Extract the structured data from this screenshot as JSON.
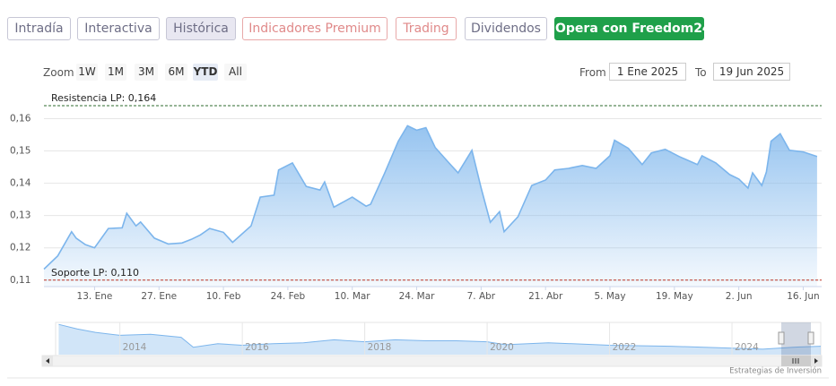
{
  "tabs": [
    "Intradía",
    "Interactiva",
    "Histórica",
    "Indicadores Premium",
    "Trading",
    "Dividendos",
    "Opera con Freedom24"
  ],
  "zoom": {
    "label": "Zoom",
    "buttons": [
      "1W",
      "1M",
      "3M",
      "6M",
      "YTD",
      "All"
    ]
  },
  "range": {
    "from_label": "From",
    "from": "1 Ene 2025",
    "to_label": "To",
    "to": "19 Jun 2025"
  },
  "chart_data": {
    "type": "area",
    "color": "#7cb5ec",
    "grid": true,
    "x": [
      "2025-01-02",
      "2025-01-05",
      "2025-01-08",
      "2025-01-09",
      "2025-01-11",
      "2025-01-13",
      "2025-01-16",
      "2025-01-19",
      "2025-01-20",
      "2025-01-22",
      "2025-01-23",
      "2025-01-26",
      "2025-01-29",
      "2025-02-01",
      "2025-02-03",
      "2025-02-05",
      "2025-02-07",
      "2025-02-10",
      "2025-02-12",
      "2025-02-16",
      "2025-02-18",
      "2025-02-21",
      "2025-02-22",
      "2025-02-25",
      "2025-02-28",
      "2025-03-03",
      "2025-03-04",
      "2025-03-06",
      "2025-03-10",
      "2025-03-13",
      "2025-03-14",
      "2025-03-17",
      "2025-03-20",
      "2025-03-22",
      "2025-03-24",
      "2025-03-26",
      "2025-03-28",
      "2025-03-31",
      "2025-04-02",
      "2025-04-05",
      "2025-04-07",
      "2025-04-09",
      "2025-04-11",
      "2025-04-12",
      "2025-04-15",
      "2025-04-18",
      "2025-04-21",
      "2025-04-23",
      "2025-04-26",
      "2025-04-29",
      "2025-05-02",
      "2025-05-05",
      "2025-05-06",
      "2025-05-09",
      "2025-05-12",
      "2025-05-14",
      "2025-05-17",
      "2025-05-20",
      "2025-05-24",
      "2025-05-25",
      "2025-05-28",
      "2025-05-31",
      "2025-06-02",
      "2025-06-04",
      "2025-06-05",
      "2025-06-07",
      "2025-06-08",
      "2025-06-09",
      "2025-06-11",
      "2025-06-13",
      "2025-06-16",
      "2025-06-19"
    ],
    "values": [
      0.1134,
      0.1175,
      0.125,
      0.123,
      0.121,
      0.12,
      0.126,
      0.1262,
      0.1307,
      0.1268,
      0.128,
      0.123,
      0.1212,
      0.1215,
      0.1226,
      0.124,
      0.126,
      0.1248,
      0.1217,
      0.1268,
      0.1357,
      0.1363,
      0.1441,
      0.1463,
      0.139,
      0.1379,
      0.1404,
      0.1326,
      0.1357,
      0.1329,
      0.1335,
      0.143,
      0.153,
      0.1578,
      0.1564,
      0.1572,
      0.1511,
      0.1463,
      0.1432,
      0.1502,
      0.1385,
      0.1279,
      0.1312,
      0.125,
      0.1296,
      0.1393,
      0.141,
      0.1441,
      0.1446,
      0.1455,
      0.1446,
      0.1485,
      0.1533,
      0.1508,
      0.1458,
      0.1494,
      0.1505,
      0.1483,
      0.1458,
      0.1485,
      0.1463,
      0.1427,
      0.1413,
      0.1385,
      0.1432,
      0.1393,
      0.1435,
      0.153,
      0.1553,
      0.1502,
      0.1497,
      0.1483
    ],
    "xlim": [
      "2025-01-02",
      "2025-06-20"
    ],
    "xticks": [
      {
        "value": "2025-01-13",
        "label": "13. Ene"
      },
      {
        "value": "2025-01-27",
        "label": "27. Ene"
      },
      {
        "value": "2025-02-10",
        "label": "10. Feb"
      },
      {
        "value": "2025-02-24",
        "label": "24. Feb"
      },
      {
        "value": "2025-03-10",
        "label": "10. Mar"
      },
      {
        "value": "2025-03-24",
        "label": "24. Mar"
      },
      {
        "value": "2025-04-07",
        "label": "7. Abr"
      },
      {
        "value": "2025-04-21",
        "label": "21. Abr"
      },
      {
        "value": "2025-05-05",
        "label": "5. May"
      },
      {
        "value": "2025-05-19",
        "label": "19. May"
      },
      {
        "value": "2025-06-02",
        "label": "2. Jun"
      },
      {
        "value": "2025-06-16",
        "label": "16. Jun"
      }
    ],
    "ylim": [
      0.108,
      0.169
    ],
    "yticks": [
      {
        "value": 0.11,
        "label": "0,11"
      },
      {
        "value": 0.12,
        "label": "0,12"
      },
      {
        "value": 0.13,
        "label": "0,13"
      },
      {
        "value": 0.14,
        "label": "0,14"
      },
      {
        "value": 0.15,
        "label": "0,15"
      },
      {
        "value": 0.16,
        "label": "0,16"
      }
    ],
    "plot_lines": [
      {
        "value": 0.164,
        "label": "Resistencia LP: 0,164",
        "color": "#2e6b2e"
      },
      {
        "value": 0.11,
        "label": "Soporte LP: 0,110",
        "color": "#c0392b"
      }
    ]
  },
  "navigator": {
    "type": "area",
    "color": "#7cb5ec",
    "x": [
      2013.0,
      2013.3,
      2013.6,
      2014.0,
      2014.5,
      2015.0,
      2015.2,
      2015.6,
      2016.0,
      2016.5,
      2017.0,
      2017.5,
      2018.0,
      2018.5,
      2019.0,
      2019.5,
      2020.0,
      2020.3,
      2021.0,
      2022.0,
      2023.0,
      2024.0,
      2024.5,
      2025.0,
      2025.45
    ],
    "values": [
      0.61,
      0.52,
      0.45,
      0.39,
      0.41,
      0.35,
      0.15,
      0.22,
      0.19,
      0.22,
      0.24,
      0.3,
      0.26,
      0.3,
      0.28,
      0.28,
      0.26,
      0.2,
      0.24,
      0.19,
      0.17,
      0.13,
      0.11,
      0.15,
      0.17
    ],
    "xlim": [
      2012.95,
      2025.45
    ],
    "ylim": [
      0,
      0.65
    ],
    "xticks": [
      2014,
      2016,
      2018,
      2020,
      2022,
      2024
    ]
  },
  "credit": "Estrategias de Inversión"
}
